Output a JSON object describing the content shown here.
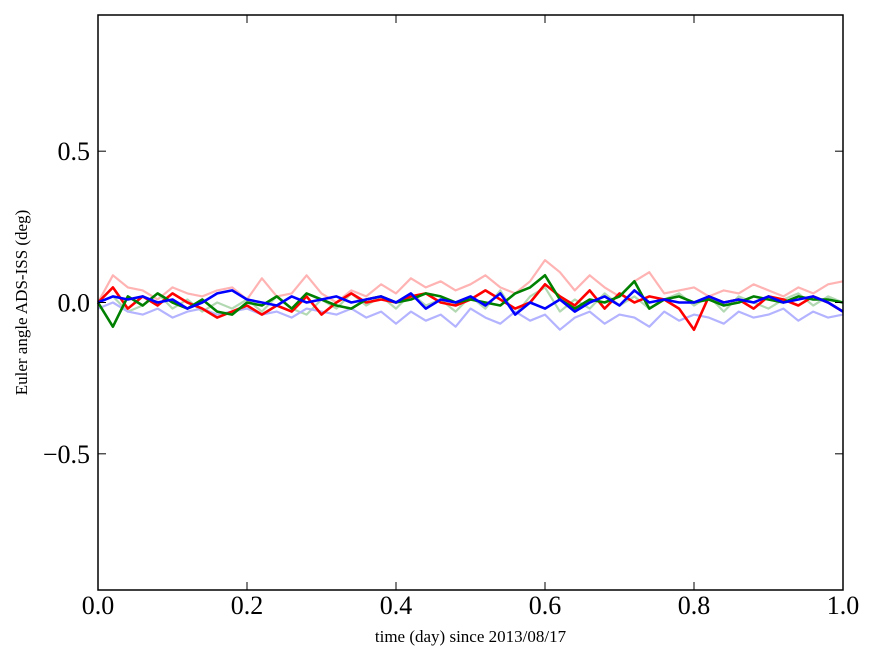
{
  "chart_data": {
    "type": "line",
    "title": "",
    "xlabel": "time (day) since 2013/08/17",
    "ylabel": "Euler angle ADS-ISS (deg)",
    "xlim": [
      0.0,
      1.0
    ],
    "ylim": [
      -0.95,
      0.95
    ],
    "xticks": [
      0.0,
      0.2,
      0.4,
      0.6,
      0.8,
      1.0
    ],
    "xtick_labels": [
      "0.0",
      "0.2",
      "0.4",
      "0.6",
      "0.8",
      "1.0"
    ],
    "yticks": [
      -0.5,
      0.0,
      0.5
    ],
    "ytick_labels": [
      "−0.5",
      "0.0",
      "0.5"
    ],
    "grid": false,
    "legend": "none",
    "x": [
      0.0,
      0.02,
      0.04,
      0.06,
      0.08,
      0.1,
      0.12,
      0.14,
      0.16,
      0.18,
      0.2,
      0.22,
      0.24,
      0.26,
      0.28,
      0.3,
      0.32,
      0.34,
      0.36,
      0.38,
      0.4,
      0.42,
      0.44,
      0.46,
      0.48,
      0.5,
      0.52,
      0.54,
      0.56,
      0.58,
      0.6,
      0.62,
      0.64,
      0.66,
      0.68,
      0.7,
      0.72,
      0.74,
      0.76,
      0.78,
      0.8,
      0.82,
      0.84,
      0.86,
      0.88,
      0.9,
      0.92,
      0.94,
      0.96,
      0.98,
      1.0
    ],
    "series": [
      {
        "color": "#ffb3b3",
        "width": 2.2,
        "values": [
          0.0,
          0.09,
          0.05,
          0.04,
          0.01,
          0.05,
          0.03,
          0.02,
          0.04,
          0.05,
          0.01,
          0.08,
          0.02,
          0.03,
          0.09,
          0.03,
          0.0,
          0.04,
          0.02,
          0.06,
          0.03,
          0.08,
          0.05,
          0.07,
          0.04,
          0.06,
          0.09,
          0.05,
          0.03,
          0.07,
          0.14,
          0.1,
          0.04,
          0.09,
          0.05,
          0.02,
          0.07,
          0.1,
          0.03,
          0.04,
          0.05,
          0.02,
          0.04,
          0.03,
          0.06,
          0.04,
          0.02,
          0.05,
          0.03,
          0.06,
          0.07
        ]
      },
      {
        "color": "#b3d9b3",
        "width": 2.2,
        "values": [
          0.0,
          0.02,
          -0.03,
          -0.01,
          0.03,
          -0.02,
          0.01,
          -0.03,
          0.0,
          -0.02,
          0.01,
          -0.03,
          0.02,
          -0.02,
          -0.04,
          0.01,
          -0.02,
          0.03,
          -0.01,
          0.02,
          -0.02,
          0.03,
          -0.01,
          0.01,
          -0.03,
          0.02,
          -0.02,
          0.04,
          -0.04,
          0.02,
          0.05,
          -0.03,
          0.01,
          -0.02,
          0.03,
          -0.01,
          0.02,
          -0.02,
          0.01,
          0.03,
          -0.01,
          0.02,
          -0.03,
          0.02,
          0.0,
          -0.02,
          0.01,
          0.03,
          -0.01,
          0.02,
          0.0
        ]
      },
      {
        "color": "#b3b3ff",
        "width": 2.2,
        "values": [
          -0.02,
          0.0,
          -0.03,
          -0.04,
          -0.02,
          -0.05,
          -0.03,
          -0.02,
          -0.04,
          -0.03,
          -0.02,
          -0.04,
          -0.03,
          -0.05,
          -0.02,
          -0.03,
          -0.04,
          -0.02,
          -0.05,
          -0.03,
          -0.07,
          -0.03,
          -0.06,
          -0.04,
          -0.08,
          -0.02,
          -0.05,
          -0.07,
          -0.03,
          -0.06,
          -0.04,
          -0.09,
          -0.05,
          -0.03,
          -0.07,
          -0.04,
          -0.05,
          -0.08,
          -0.03,
          -0.06,
          -0.04,
          -0.05,
          -0.07,
          -0.03,
          -0.05,
          -0.04,
          -0.02,
          -0.06,
          -0.03,
          -0.05,
          -0.04
        ]
      },
      {
        "color": "#ff0000",
        "width": 2.6,
        "values": [
          0.0,
          0.05,
          -0.02,
          0.02,
          -0.01,
          0.03,
          0.0,
          -0.02,
          -0.05,
          -0.03,
          -0.01,
          -0.04,
          -0.01,
          -0.03,
          0.02,
          -0.04,
          0.0,
          0.03,
          0.0,
          0.01,
          0.0,
          0.02,
          0.03,
          0.0,
          -0.01,
          0.01,
          0.04,
          0.01,
          -0.02,
          0.0,
          0.06,
          0.02,
          -0.01,
          0.04,
          -0.02,
          0.03,
          0.0,
          0.02,
          0.01,
          -0.02,
          -0.09,
          0.02,
          0.0,
          0.01,
          -0.02,
          0.02,
          0.01,
          -0.01,
          0.02,
          0.0,
          -0.03
        ]
      },
      {
        "color": "#008000",
        "width": 2.6,
        "values": [
          0.0,
          -0.08,
          0.02,
          -0.01,
          0.03,
          0.0,
          -0.02,
          0.01,
          -0.03,
          -0.04,
          0.0,
          -0.01,
          0.02,
          -0.02,
          0.03,
          0.01,
          -0.01,
          -0.02,
          0.01,
          0.02,
          0.0,
          0.01,
          0.03,
          0.02,
          0.0,
          0.01,
          0.0,
          -0.01,
          0.03,
          0.05,
          0.09,
          0.01,
          -0.02,
          0.01,
          0.0,
          0.02,
          0.07,
          -0.02,
          0.01,
          0.02,
          0.0,
          0.01,
          -0.01,
          0.0,
          0.02,
          0.01,
          0.0,
          0.02,
          0.01,
          0.01,
          0.0
        ]
      },
      {
        "color": "#0000ff",
        "width": 2.6,
        "values": [
          0.0,
          0.02,
          0.01,
          0.02,
          0.0,
          0.01,
          -0.02,
          0.0,
          0.03,
          0.04,
          0.01,
          0.0,
          -0.01,
          0.02,
          0.0,
          0.01,
          0.02,
          0.0,
          0.01,
          0.02,
          0.0,
          0.03,
          -0.02,
          0.01,
          0.0,
          0.02,
          -0.01,
          0.03,
          -0.04,
          0.0,
          -0.02,
          0.01,
          -0.03,
          0.0,
          0.02,
          -0.01,
          0.04,
          0.0,
          0.01,
          0.0,
          0.0,
          0.02,
          0.0,
          0.01,
          0.0,
          0.02,
          0.0,
          0.01,
          0.02,
          0.0,
          -0.03
        ]
      }
    ]
  }
}
